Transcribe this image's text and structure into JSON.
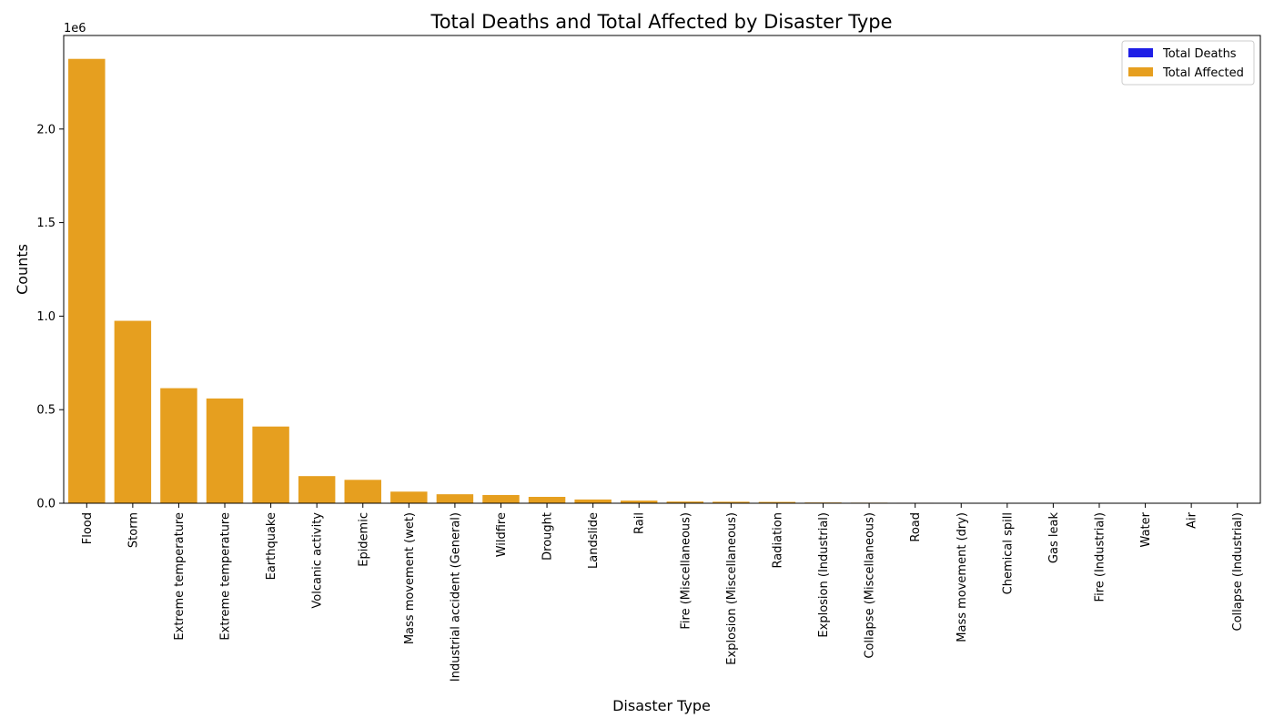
{
  "chart_data": {
    "type": "bar",
    "title": "Total Deaths and Total Affected by Disaster Type",
    "xlabel": "Disaster Type",
    "ylabel": "Counts",
    "y_scale_label": "1e6",
    "ylim": [
      0,
      2500000
    ],
    "y_ticks": [
      0,
      500000,
      1000000,
      1500000,
      2000000
    ],
    "y_tick_labels": [
      "0.0",
      "0.5",
      "1.0",
      "1.5",
      "2.0"
    ],
    "grid": false,
    "legend_position": "top-right",
    "categories": [
      "Flood",
      "Storm",
      "Extreme temperature",
      "Extreme temperature",
      "Earthquake",
      "Volcanic activity",
      "Epidemic",
      "Mass movement (wet)",
      "Industrial accident (General)",
      "Wildfire",
      "Drought",
      "Landslide",
      "Rail",
      "Fire (Miscellaneous)",
      "Explosion (Miscellaneous)",
      "Radiation",
      "Explosion (Industrial)",
      "Collapse (Miscellaneous)",
      "Road",
      "Mass movement (dry)",
      "Chemical spill",
      "Gas leak",
      "Fire (Industrial)",
      "Water",
      "Air",
      "Collapse (Industrial)"
    ],
    "series": [
      {
        "name": "Total Deaths",
        "color": "#1f1fe6",
        "values": [
          0,
          0,
          0,
          0,
          0,
          0,
          0,
          0,
          0,
          0,
          0,
          0,
          0,
          0,
          0,
          0,
          0,
          0,
          0,
          0,
          0,
          0,
          0,
          0,
          0,
          0
        ]
      },
      {
        "name": "Total Affected",
        "color": "#e69f1f",
        "values": [
          2375000,
          975000,
          615000,
          560000,
          410000,
          145000,
          125000,
          62000,
          48000,
          44000,
          34000,
          20000,
          14000,
          9000,
          8000,
          7000,
          4000,
          3000,
          2500,
          2000,
          0,
          0,
          0,
          0,
          0,
          0
        ]
      }
    ]
  }
}
